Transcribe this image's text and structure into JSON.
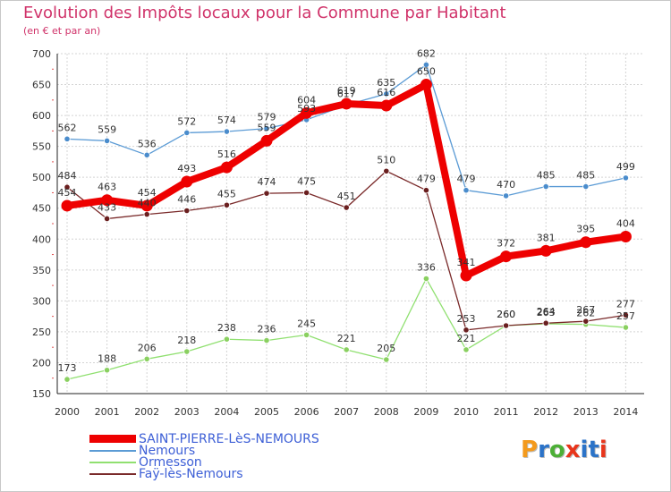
{
  "header": {
    "title": "Evolution des Impôts locaux pour la Commune par Habitant",
    "subtitle": "(en € et par an)"
  },
  "logo": {
    "text": "Proxiti",
    "colors": [
      "#f39a1d",
      "#2b73c8",
      "#4caf36",
      "#e8351b",
      "#2b73c8",
      "#2b73c8",
      "#e8351b"
    ]
  },
  "chart_data": {
    "type": "line",
    "title": "Evolution des Impôts locaux pour la Commune par Habitant",
    "subtitle": "(en € et par an)",
    "xlabel": "",
    "ylabel": "",
    "x": [
      "2000",
      "2001",
      "2002",
      "2003",
      "2004",
      "2005",
      "2006",
      "2007",
      "2008",
      "2009",
      "2010",
      "2011",
      "2012",
      "2013",
      "2014"
    ],
    "ylim": [
      150,
      700
    ],
    "yticks": [
      "150",
      "200",
      "250",
      "300",
      "350",
      "400",
      "450",
      "500",
      "550",
      "600",
      "650",
      "700"
    ],
    "grid": true,
    "legend_position": "bottom",
    "series": [
      {
        "name": "SAINT-PIERRE-LèS-NEMOURS",
        "color": "#ee0000",
        "values": [
          454,
          463,
          454,
          493,
          516,
          559,
          604,
          619,
          616,
          650,
          341,
          372,
          381,
          395,
          404
        ],
        "labels": [
          "454",
          "463",
          "454",
          "493",
          "516",
          "559",
          "604",
          "619",
          "616",
          "650",
          "341",
          "372",
          "381",
          "395",
          "404"
        ]
      },
      {
        "name": "Nemours",
        "color": "#5b9bd5",
        "values": [
          562,
          559,
          536,
          572,
          574,
          579,
          593,
          617,
          635,
          682,
          479,
          470,
          485,
          485,
          499
        ],
        "labels": [
          "562",
          "559",
          "536",
          "572",
          "574",
          "579",
          "593",
          "617",
          "635",
          "682",
          "479",
          "470",
          "485",
          "485",
          "499"
        ]
      },
      {
        "name": "Ormesson",
        "color": "#90e070",
        "values": [
          173,
          188,
          206,
          218,
          238,
          236,
          245,
          221,
          205,
          336,
          221,
          260,
          263,
          262,
          257
        ],
        "labels": [
          "173",
          "188",
          "206",
          "218",
          "238",
          "236",
          "245",
          "221",
          "205",
          "336",
          "221",
          "260",
          "263",
          "262",
          "257"
        ]
      },
      {
        "name": "Faÿ-lès-Nemours",
        "color": "#7a2a2a",
        "values": [
          484,
          433,
          440,
          446,
          455,
          474,
          475,
          451,
          510,
          479,
          253,
          260,
          264,
          267,
          277
        ],
        "labels": [
          "484",
          "433",
          "440",
          "446",
          "455",
          "474",
          "475",
          "451",
          "510",
          "479",
          "253",
          "260",
          "264",
          "267",
          "277"
        ]
      }
    ]
  }
}
